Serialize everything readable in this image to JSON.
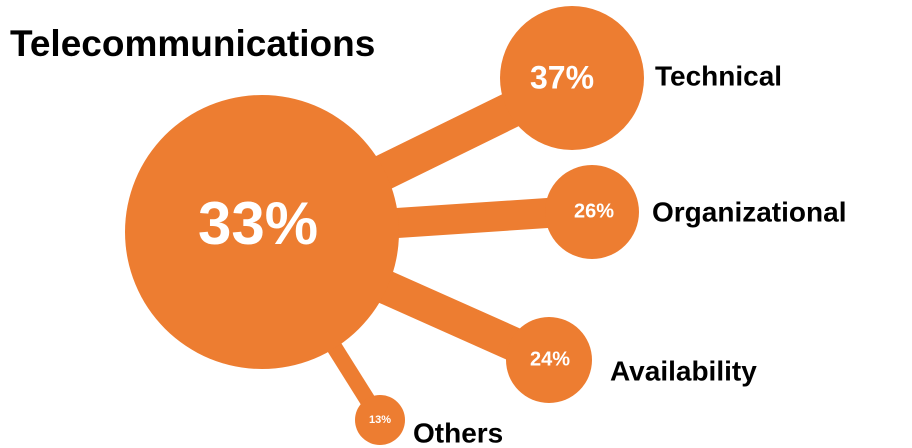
{
  "title": "Telecommunications",
  "center": {
    "value": "33%"
  },
  "nodes": [
    {
      "label": "Technical",
      "value": "37%"
    },
    {
      "label": "Organizational",
      "value": "26%"
    },
    {
      "label": "Availability",
      "value": "24%"
    },
    {
      "label": "Others",
      "value": "13%"
    }
  ]
}
